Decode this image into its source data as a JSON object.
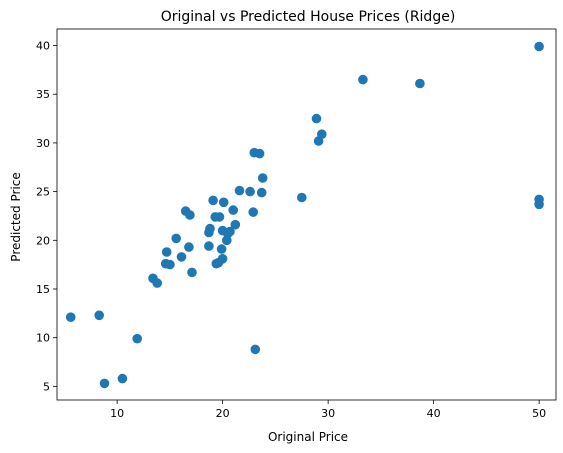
{
  "chart_data": {
    "type": "scatter",
    "title": "Original vs Predicted House Prices (Ridge)",
    "xlabel": "Original Price",
    "ylabel": "Predicted Price",
    "xlim": [
      4.3,
      51.6
    ],
    "ylim": [
      3.6,
      41.7
    ],
    "xticks": [
      10,
      20,
      30,
      40,
      50
    ],
    "yticks": [
      5,
      10,
      15,
      20,
      25,
      30,
      35,
      40
    ],
    "grid": false,
    "marker_color": "#1f77b4",
    "points": [
      [
        5.6,
        12.1
      ],
      [
        8.3,
        12.3
      ],
      [
        8.8,
        5.3
      ],
      [
        10.5,
        5.8
      ],
      [
        11.9,
        9.9
      ],
      [
        13.4,
        16.1
      ],
      [
        13.8,
        15.6
      ],
      [
        14.6,
        17.6
      ],
      [
        14.7,
        18.8
      ],
      [
        15.0,
        17.5
      ],
      [
        15.6,
        20.2
      ],
      [
        16.1,
        18.3
      ],
      [
        16.5,
        23.0
      ],
      [
        16.8,
        19.3
      ],
      [
        16.9,
        22.6
      ],
      [
        17.1,
        16.7
      ],
      [
        18.7,
        19.4
      ],
      [
        18.7,
        20.8
      ],
      [
        18.8,
        21.2
      ],
      [
        19.1,
        24.1
      ],
      [
        19.3,
        22.4
      ],
      [
        19.4,
        17.6
      ],
      [
        19.6,
        17.7
      ],
      [
        19.7,
        22.4
      ],
      [
        19.9,
        19.1
      ],
      [
        20.0,
        21.0
      ],
      [
        20.0,
        18.1
      ],
      [
        20.1,
        23.9
      ],
      [
        20.4,
        20.0
      ],
      [
        20.5,
        20.7
      ],
      [
        20.7,
        20.9
      ],
      [
        21.0,
        23.1
      ],
      [
        21.2,
        21.6
      ],
      [
        21.6,
        25.1
      ],
      [
        22.6,
        25.0
      ],
      [
        22.9,
        22.9
      ],
      [
        23.0,
        29.0
      ],
      [
        23.1,
        8.8
      ],
      [
        23.5,
        28.9
      ],
      [
        23.7,
        24.9
      ],
      [
        23.8,
        26.4
      ],
      [
        27.5,
        24.4
      ],
      [
        28.9,
        32.5
      ],
      [
        29.1,
        30.2
      ],
      [
        29.4,
        30.9
      ],
      [
        33.3,
        36.5
      ],
      [
        38.7,
        36.1
      ],
      [
        50.0,
        39.9
      ],
      [
        50.0,
        24.2
      ],
      [
        50.0,
        23.7
      ]
    ]
  }
}
